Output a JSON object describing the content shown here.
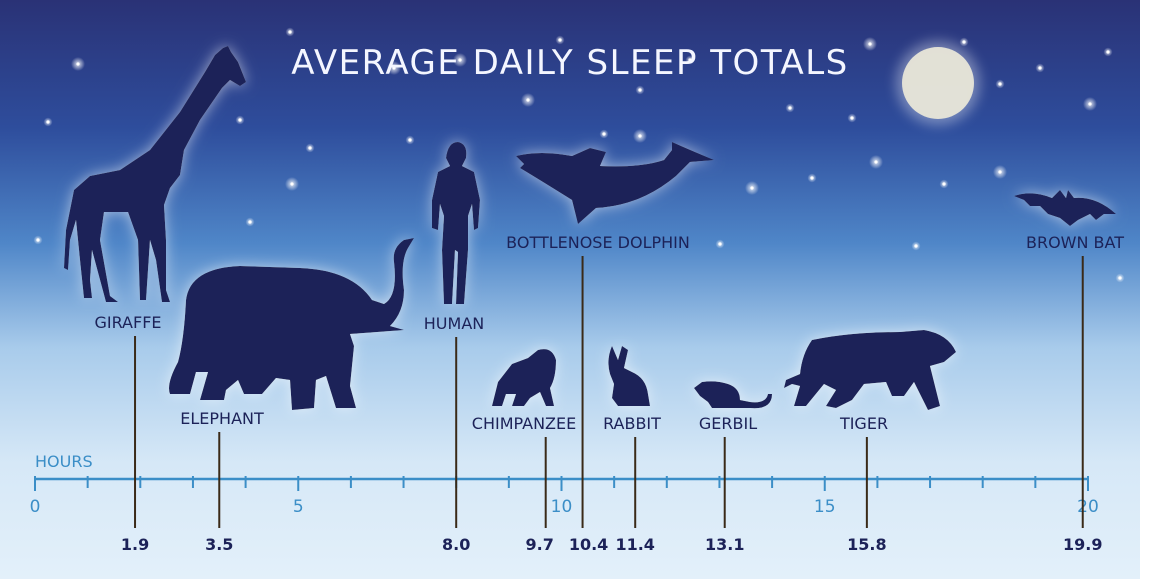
{
  "chart_data": {
    "type": "scatter",
    "title": "AVERAGE DAILY SLEEP TOTALS",
    "xlabel": "HOURS",
    "ylabel": "",
    "xlim": [
      0,
      20
    ],
    "x_ticks": [
      0,
      5,
      10,
      15,
      20
    ],
    "x_tick_labels": [
      "0",
      "5",
      "10",
      "15",
      "20"
    ],
    "minor_tick_step": 1,
    "grid": false,
    "series": [
      {
        "points": [
          {
            "label": "GIRAFFE",
            "value": 1.9,
            "value_label": "1.9",
            "icon": "giraffe-icon"
          },
          {
            "label": "ELEPHANT",
            "value": 3.5,
            "value_label": "3.5",
            "icon": "elephant-icon"
          },
          {
            "label": "HUMAN",
            "value": 8.0,
            "value_label": "8.0",
            "icon": "human-icon"
          },
          {
            "label": "CHIMPANZEE",
            "value": 9.7,
            "value_label": "9.7",
            "icon": "chimpanzee-icon"
          },
          {
            "label": "BOTTLENOSE DOLPHIN",
            "value": 10.4,
            "value_label": "10.4",
            "icon": "dolphin-icon"
          },
          {
            "label": "RABBIT",
            "value": 11.4,
            "value_label": "11.4",
            "icon": "rabbit-icon"
          },
          {
            "label": "GERBIL",
            "value": 13.1,
            "value_label": "13.1",
            "icon": "gerbil-icon"
          },
          {
            "label": "TIGER",
            "value": 15.8,
            "value_label": "15.8",
            "icon": "tiger-icon"
          },
          {
            "label": "BROWN BAT",
            "value": 19.9,
            "value_label": "19.9",
            "icon": "bat-icon"
          }
        ]
      }
    ]
  },
  "colors": {
    "sky_top": "#2b3478",
    "sky_mid": "#3a6fb8",
    "sky_bottom": "#dcecf9",
    "silhouette": "#1c2258",
    "axis": "#3b8ec7",
    "leader_line": "#3a2a18",
    "moon": "#e8e6d8"
  },
  "decor": {
    "moon_icon": "moon-icon",
    "star_icon": "star-icon"
  }
}
